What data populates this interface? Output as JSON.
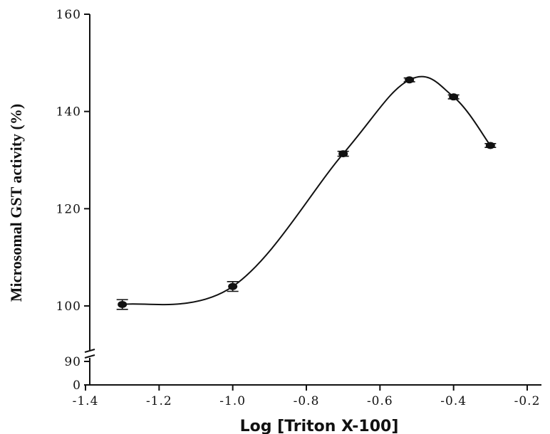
{
  "chart_data": {
    "type": "scatter",
    "xlabel": "Log [Triton X-100]",
    "ylabel": "Microsomal GST activity (%)",
    "xlim": [
      -1.4,
      -0.2
    ],
    "x_ticks": [
      "-1.4",
      "-1.2",
      "-1.0",
      "-0.8",
      "-0.6",
      "-0.4",
      "-0.2"
    ],
    "x_tick_values": [
      -1.4,
      -1.2,
      -1.0,
      -0.8,
      -0.6,
      -0.4,
      -0.2
    ],
    "y_ticks": [
      "0",
      "90",
      "100",
      "120",
      "140",
      "160"
    ],
    "y_tick_values": [
      0,
      90,
      100,
      120,
      140,
      160
    ],
    "y_axis_break": true,
    "grid": false,
    "series": [
      {
        "points": [
          {
            "x": -1.3,
            "y": 100.3,
            "err": 1.0
          },
          {
            "x": -1.0,
            "y": 104.0,
            "err": 1.0
          },
          {
            "x": -0.7,
            "y": 131.3,
            "err": 0.5
          },
          {
            "x": -0.52,
            "y": 146.5,
            "err": 0.4
          },
          {
            "x": -0.4,
            "y": 143.0,
            "err": 0.4
          },
          {
            "x": -0.3,
            "y": 133.0,
            "err": 0.4
          }
        ],
        "fit_curve": true
      }
    ]
  }
}
